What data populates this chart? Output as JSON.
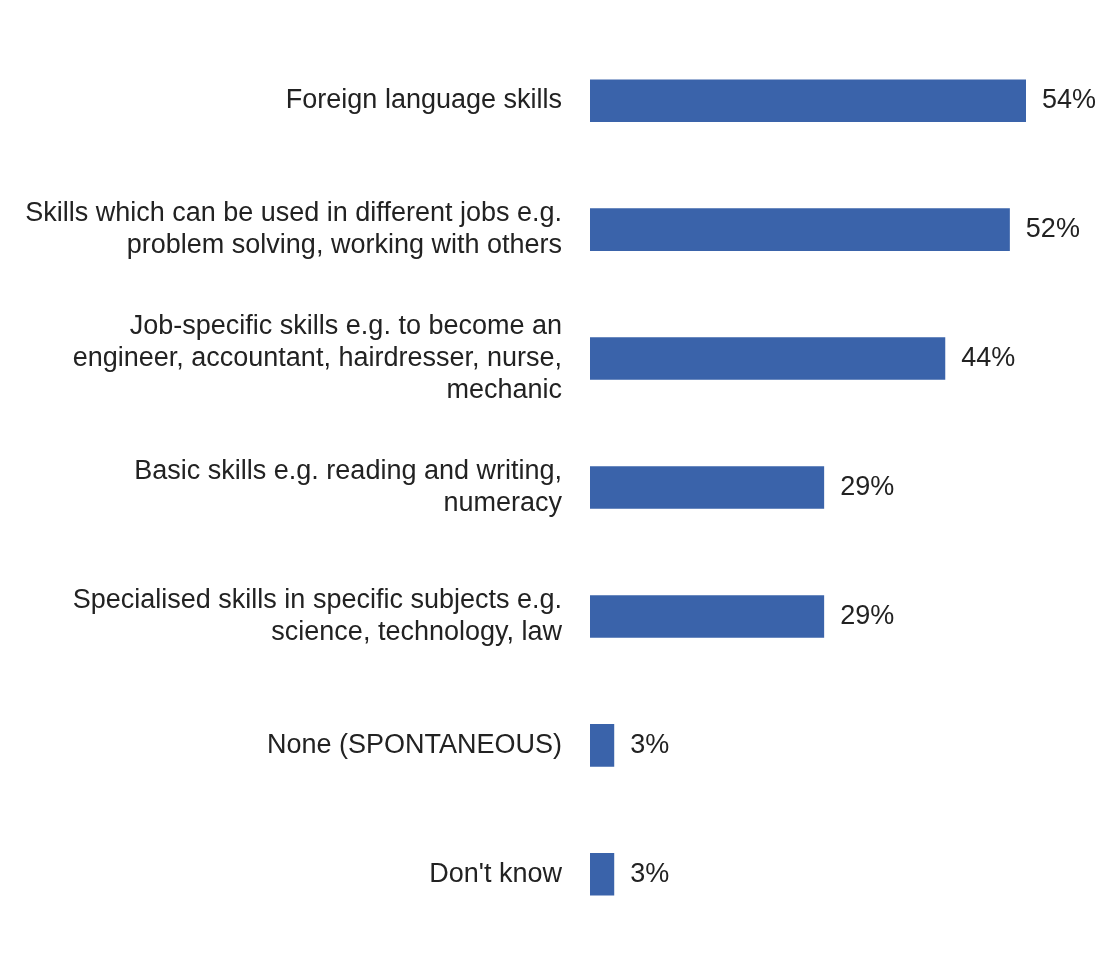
{
  "chart_data": {
    "type": "bar",
    "orientation": "horizontal",
    "categories": [
      "Foreign language skills",
      "Skills which can be used in different jobs e.g. problem solving, working with others",
      "Job-specific skills e.g. to become an engineer, accountant, hairdresser, nurse, mechanic",
      "Basic skills e.g. reading and writing, numeracy",
      "Specialised skills in specific subjects e.g. science, technology, law",
      "None (SPONTANEOUS)",
      "Don't know"
    ],
    "values": [
      54,
      52,
      44,
      29,
      29,
      3,
      3
    ],
    "value_labels": [
      "54%",
      "52%",
      "44%",
      "29%",
      "29%",
      "3%",
      "3%"
    ],
    "color": "#3a63aa",
    "grid": false,
    "legend": false,
    "tick_labels": "y"
  }
}
